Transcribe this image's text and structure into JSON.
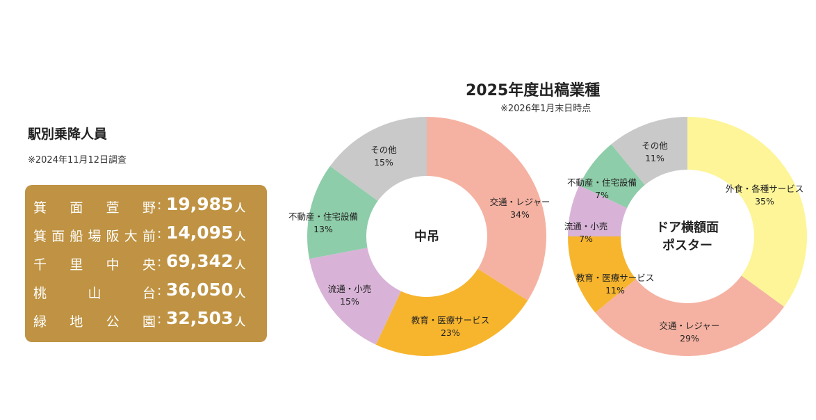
{
  "ridership": {
    "title": "駅別乗降人員",
    "note": "※2024年11月12日調査",
    "unit": "人",
    "rows": [
      {
        "station": "箕面萱野",
        "count": "19,985"
      },
      {
        "station": "箕面船場阪大前",
        "count": "14,095"
      },
      {
        "station": "千里中央",
        "count": "69,342"
      },
      {
        "station": "桃山台",
        "count": "36,050"
      },
      {
        "station": "緑地公園",
        "count": "32,503"
      }
    ]
  },
  "chart_data": [
    {
      "type": "donut",
      "title": "2025年度出稿業種",
      "note": "※2026年1月末日時点",
      "center": "中吊",
      "slices": [
        {
          "name": "交通・レジャー",
          "value": 34,
          "label": "34%",
          "color": "#f5b2a2"
        },
        {
          "name": "教育・医療サービス",
          "value": 23,
          "label": "23%",
          "color": "#f7b52d"
        },
        {
          "name": "流通・小売",
          "value": 15,
          "label": "15%",
          "color": "#d8b3d7"
        },
        {
          "name": "不動産・住宅設備",
          "value": 13,
          "label": "13%",
          "color": "#8ecda9"
        },
        {
          "name": "その他",
          "value": 15,
          "label": "15%",
          "color": "#c9c9c9"
        }
      ]
    },
    {
      "type": "donut",
      "center": [
        "ドア横額面",
        "ポスター"
      ],
      "slices": [
        {
          "name": "外食・各種サービス",
          "value": 35,
          "label": "35%",
          "color": "#fdf597"
        },
        {
          "name": "交通・レジャー",
          "value": 29,
          "label": "29%",
          "color": "#f5b2a2"
        },
        {
          "name": "教育・医療サービス",
          "value": 11,
          "label": "11%",
          "color": "#f7b52d"
        },
        {
          "name": "流通・小売",
          "value": 7,
          "label": "7%",
          "color": "#d8b3d7"
        },
        {
          "name": "不動産・住宅設備",
          "value": 7,
          "label": "7%",
          "color": "#8ecda9"
        },
        {
          "name": "その他",
          "value": 11,
          "label": "11%",
          "color": "#c9c9c9"
        }
      ]
    }
  ]
}
